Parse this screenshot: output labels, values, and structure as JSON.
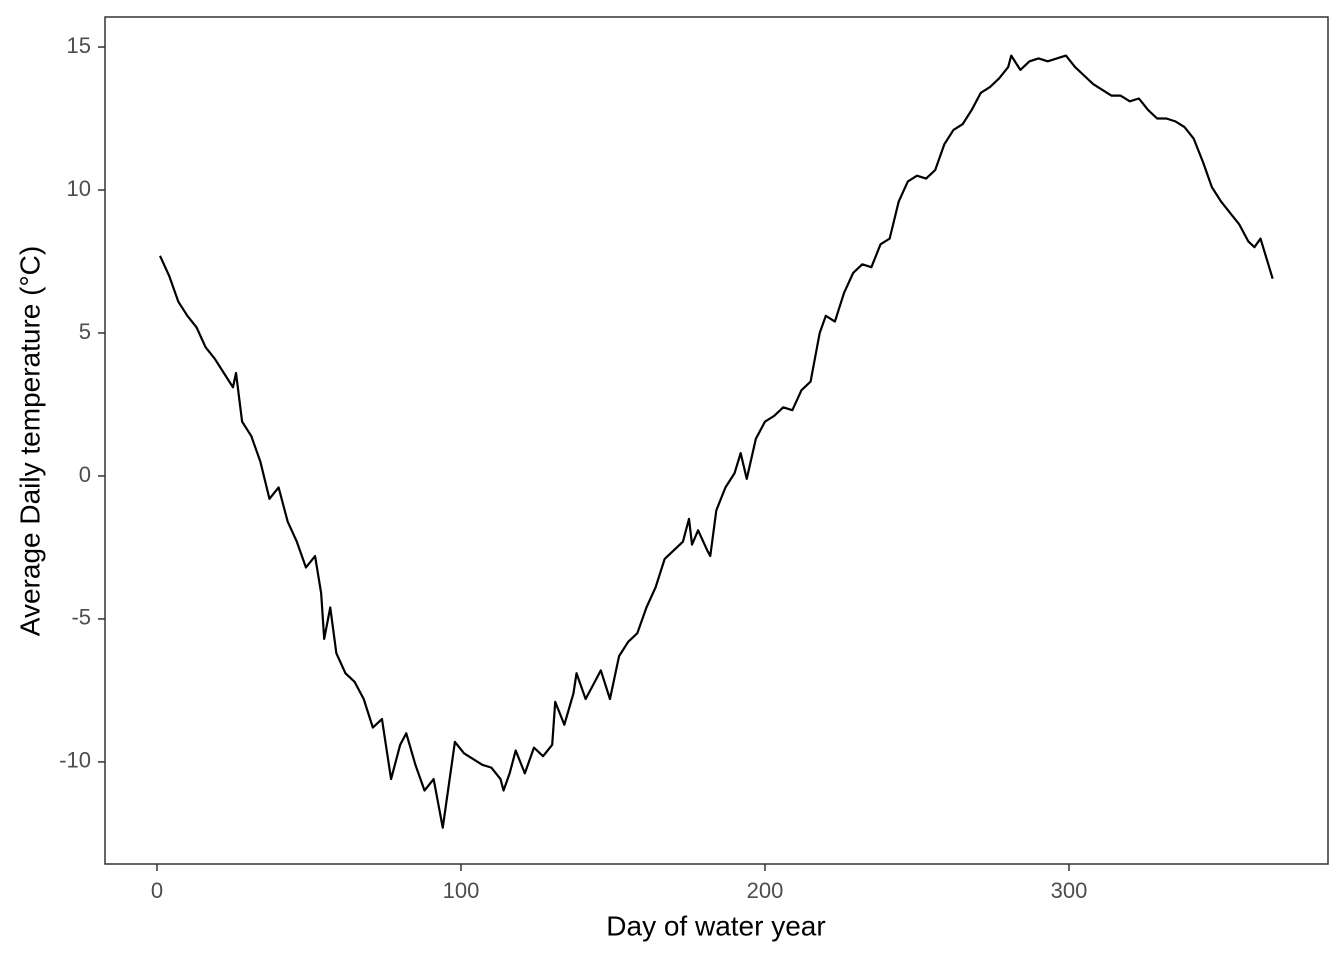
{
  "chart_data": {
    "type": "line",
    "x_label": "Day of water year",
    "y_label": "Average Daily temperature (°C)",
    "xlim": [
      -17.1,
      385.2
    ],
    "ylim": [
      -13.57,
      16.05
    ],
    "xticks": [
      0,
      100,
      200,
      300
    ],
    "yticks": [
      -10,
      -5,
      0,
      5,
      10,
      15
    ],
    "grid": false,
    "series": [
      {
        "color": "#000000",
        "x": [
          1,
          4,
          7,
          10,
          13,
          16,
          19,
          22,
          25,
          26,
          28,
          31,
          34,
          37,
          40,
          43,
          46,
          49,
          52,
          54,
          55,
          57,
          59,
          62,
          65,
          68,
          71,
          74,
          77,
          80,
          82,
          85,
          88,
          91,
          94,
          96,
          98,
          101,
          104,
          107,
          110,
          113,
          114,
          116,
          118,
          121,
          124,
          127,
          130,
          131,
          134,
          137,
          138,
          141,
          144,
          146,
          149,
          152,
          155,
          158,
          161,
          164,
          167,
          170,
          173,
          175,
          176,
          178,
          181,
          182,
          184,
          187,
          190,
          192,
          194,
          197,
          200,
          203,
          206,
          209,
          212,
          215,
          218,
          220,
          223,
          226,
          229,
          232,
          235,
          238,
          241,
          244,
          247,
          250,
          253,
          256,
          259,
          262,
          265,
          268,
          271,
          274,
          277,
          280,
          281,
          284,
          287,
          290,
          293,
          296,
          299,
          302,
          305,
          308,
          311,
          314,
          317,
          320,
          323,
          326,
          329,
          332,
          335,
          338,
          341,
          344,
          347,
          350,
          353,
          356,
          359,
          361,
          363,
          365,
          367
        ],
        "values": [
          7.7,
          7.0,
          6.1,
          5.6,
          5.2,
          4.5,
          4.1,
          3.6,
          3.1,
          3.6,
          1.9,
          1.4,
          0.5,
          -0.8,
          -0.4,
          -1.6,
          -2.3,
          -3.2,
          -2.8,
          -4.1,
          -5.7,
          -4.6,
          -6.2,
          -6.9,
          -7.2,
          -7.8,
          -8.8,
          -8.5,
          -10.6,
          -9.4,
          -9.0,
          -10.1,
          -11.0,
          -10.6,
          -12.3,
          -10.8,
          -9.3,
          -9.7,
          -9.9,
          -10.1,
          -10.2,
          -10.6,
          -11.0,
          -10.4,
          -9.6,
          -10.4,
          -9.5,
          -9.8,
          -9.4,
          -7.9,
          -8.7,
          -7.6,
          -6.9,
          -7.8,
          -7.2,
          -6.8,
          -7.8,
          -6.3,
          -5.8,
          -5.5,
          -4.6,
          -3.9,
          -2.9,
          -2.6,
          -2.3,
          -1.5,
          -2.4,
          -1.9,
          -2.6,
          -2.8,
          -1.2,
          -0.4,
          0.1,
          0.8,
          -0.1,
          1.3,
          1.9,
          2.1,
          2.4,
          2.3,
          3.0,
          3.3,
          5.0,
          5.6,
          5.4,
          6.4,
          7.1,
          7.4,
          7.3,
          8.1,
          8.3,
          9.6,
          10.3,
          10.5,
          10.4,
          10.7,
          11.6,
          12.1,
          12.3,
          12.8,
          13.4,
          13.6,
          13.9,
          14.3,
          14.7,
          14.2,
          14.5,
          14.6,
          14.5,
          14.6,
          14.7,
          14.3,
          14.0,
          13.7,
          13.5,
          13.3,
          13.3,
          13.1,
          13.2,
          12.8,
          12.5,
          12.5,
          12.4,
          12.2,
          11.8,
          11.0,
          10.1,
          9.6,
          9.2,
          8.8,
          8.2,
          8.0,
          8.3,
          7.6,
          6.9
        ]
      }
    ]
  }
}
